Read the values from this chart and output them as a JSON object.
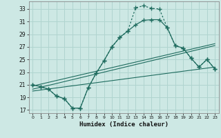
{
  "xlabel": "Humidex (Indice chaleur)",
  "bg_color": "#cde8e4",
  "grid_color": "#b0d4cf",
  "line_color": "#1e6b5e",
  "xlim": [
    -0.5,
    23.5
  ],
  "ylim": [
    16.5,
    34.2
  ],
  "xticks": [
    0,
    1,
    2,
    3,
    4,
    5,
    6,
    7,
    8,
    9,
    10,
    11,
    12,
    13,
    14,
    15,
    16,
    17,
    18,
    19,
    20,
    21,
    22,
    23
  ],
  "yticks": [
    17,
    19,
    21,
    23,
    25,
    27,
    29,
    31,
    33
  ],
  "curve_solid_x": [
    0,
    1,
    2,
    3,
    4,
    5,
    6,
    7,
    8,
    9,
    10,
    11,
    12,
    13,
    14,
    15,
    16,
    17,
    18,
    19,
    20,
    21,
    22,
    23
  ],
  "curve_solid_y": [
    21.0,
    20.7,
    20.3,
    19.2,
    18.8,
    17.3,
    17.3,
    20.5,
    22.8,
    24.8,
    27.0,
    28.5,
    29.5,
    30.5,
    31.2,
    31.3,
    31.3,
    30.0,
    27.2,
    26.8,
    25.2,
    23.8,
    25.0,
    23.5
  ],
  "curve_dot_x": [
    0,
    1,
    2,
    3,
    4,
    5,
    6,
    7,
    8,
    9,
    10,
    11,
    12,
    13,
    14,
    15,
    16,
    17,
    18,
    19,
    20,
    21,
    22,
    23
  ],
  "curve_dot_y": [
    21.0,
    20.7,
    20.3,
    19.2,
    18.8,
    17.3,
    17.3,
    20.5,
    22.8,
    24.8,
    27.0,
    28.5,
    29.5,
    33.2,
    33.5,
    33.1,
    33.0,
    30.0,
    27.2,
    26.8,
    25.2,
    23.8,
    25.0,
    23.5
  ],
  "line1_x": [
    0,
    23
  ],
  "line1_y": [
    20.8,
    27.5
  ],
  "line2_x": [
    0,
    23
  ],
  "line2_y": [
    20.3,
    27.2
  ],
  "line3_x": [
    0,
    23
  ],
  "line3_y": [
    20.0,
    23.8
  ]
}
